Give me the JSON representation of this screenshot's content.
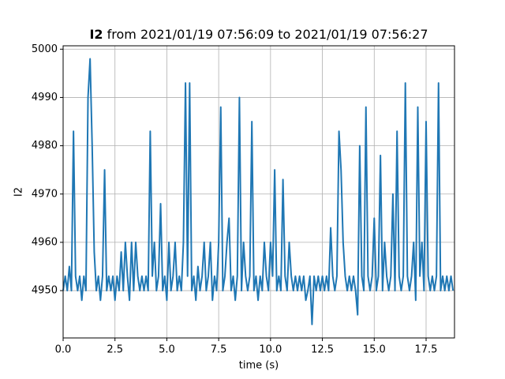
{
  "chart_data": {
    "type": "line",
    "title": {
      "bold": "I2",
      "rest": "from 2021/01/19 07:56:09 to 2021/01/19 07:56:27"
    },
    "x_label": "time (s)",
    "y_label": "I2",
    "x": [
      0,
      0.1,
      0.2,
      0.3,
      0.4,
      0.5,
      0.6,
      0.7,
      0.8,
      0.9,
      1,
      1.1,
      1.2,
      1.3,
      1.4,
      1.5,
      1.6,
      1.7,
      1.8,
      1.9,
      2,
      2.1,
      2.2,
      2.3,
      2.4,
      2.5,
      2.6,
      2.7,
      2.8,
      2.9,
      3,
      3.1,
      3.2,
      3.3,
      3.4,
      3.5,
      3.6,
      3.7,
      3.8,
      3.9,
      4,
      4.1,
      4.2,
      4.3,
      4.4,
      4.5,
      4.6,
      4.7,
      4.8,
      4.9,
      5,
      5.1,
      5.2,
      5.3,
      5.4,
      5.5,
      5.6,
      5.7,
      5.8,
      5.9,
      6,
      6.1,
      6.2,
      6.3,
      6.4,
      6.5,
      6.6,
      6.7,
      6.8,
      6.9,
      7,
      7.1,
      7.2,
      7.3,
      7.4,
      7.5,
      7.6,
      7.7,
      7.8,
      7.9,
      8,
      8.1,
      8.2,
      8.3,
      8.4,
      8.5,
      8.6,
      8.7,
      8.8,
      8.9,
      9,
      9.1,
      9.2,
      9.3,
      9.4,
      9.5,
      9.6,
      9.7,
      9.8,
      9.9,
      10,
      10.1,
      10.2,
      10.3,
      10.4,
      10.5,
      10.6,
      10.7,
      10.8,
      10.9,
      11,
      11.1,
      11.2,
      11.3,
      11.4,
      11.5,
      11.6,
      11.7,
      11.8,
      11.9,
      12,
      12.1,
      12.2,
      12.3,
      12.4,
      12.5,
      12.6,
      12.7,
      12.8,
      12.9,
      13,
      13.1,
      13.2,
      13.3,
      13.4,
      13.5,
      13.6,
      13.7,
      13.8,
      13.9,
      14,
      14.1,
      14.2,
      14.3,
      14.4,
      14.5,
      14.6,
      14.7,
      14.8,
      14.9,
      15,
      15.1,
      15.2,
      15.3,
      15.4,
      15.5,
      15.6,
      15.7,
      15.8,
      15.9,
      16,
      16.1,
      16.2,
      16.3,
      16.4,
      16.5,
      16.6,
      16.7,
      16.8,
      16.9,
      17,
      17.1,
      17.2,
      17.3,
      17.4,
      17.5,
      17.6,
      17.7,
      17.8,
      17.9,
      18,
      18.1,
      18.2,
      18.3,
      18.4,
      18.5,
      18.6,
      18.7,
      18.8
    ],
    "series": [
      {
        "name": "I2",
        "color": "#1f77b4",
        "values": [
          4950,
          4953,
          4950,
          4955,
          4950,
          4983,
          4953,
          4950,
          4953,
          4948,
          4953,
          4950,
          4990,
          4998,
          4980,
          4958,
          4950,
          4953,
          4948,
          4953,
          4975,
          4950,
          4953,
          4950,
          4953,
          4948,
          4953,
          4950,
          4958,
          4950,
          4960,
          4953,
          4948,
          4960,
          4950,
          4960,
          4953,
          4950,
          4953,
          4950,
          4953,
          4950,
          4983,
          4953,
          4960,
          4950,
          4953,
          4968,
          4950,
          4953,
          4948,
          4960,
          4950,
          4953,
          4960,
          4950,
          4953,
          4950,
          4960,
          4993,
          4953,
          4993,
          4950,
          4953,
          4948,
          4955,
          4950,
          4953,
          4960,
          4950,
          4953,
          4960,
          4948,
          4953,
          4950,
          4960,
          4988,
          4950,
          4953,
          4960,
          4965,
          4950,
          4953,
          4948,
          4953,
          4990,
          4950,
          4960,
          4953,
          4950,
          4953,
          4985,
          4950,
          4953,
          4948,
          4953,
          4950,
          4960,
          4953,
          4950,
          4960,
          4953,
          4975,
          4950,
          4953,
          4950,
          4973,
          4953,
          4950,
          4960,
          4953,
          4950,
          4953,
          4950,
          4953,
          4950,
          4953,
          4948,
          4950,
          4953,
          4943,
          4953,
          4950,
          4953,
          4950,
          4953,
          4950,
          4953,
          4950,
          4963,
          4953,
          4950,
          4953,
          4983,
          4975,
          4960,
          4953,
          4950,
          4953,
          4950,
          4953,
          4950,
          4945,
          4980,
          4953,
          4950,
          4988,
          4953,
          4950,
          4953,
          4965,
          4950,
          4953,
          4978,
          4950,
          4960,
          4953,
          4950,
          4953,
          4970,
          4950,
          4983,
          4953,
          4950,
          4953,
          4993,
          4953,
          4950,
          4953,
          4960,
          4948,
          4988,
          4953,
          4960,
          4950,
          4985,
          4953,
          4950,
          4953,
          4950,
          4953,
          4993,
          4950,
          4953,
          4950,
          4953,
          4950,
          4953,
          4950
        ]
      }
    ],
    "xlim": [
      0,
      18.87
    ],
    "ylim": [
      4940.2,
      5000.7
    ],
    "xticks": [
      {
        "value": 0,
        "label": "0.0"
      },
      2.5,
      {
        "value": 5,
        "label": "5.0"
      },
      7.5,
      {
        "value": 10,
        "label": "10.0"
      },
      12.5,
      {
        "value": 15,
        "label": "15.0"
      },
      17.5
    ],
    "yticks": [
      4950,
      4960,
      4970,
      4980,
      4990,
      5000
    ],
    "grid": true
  }
}
